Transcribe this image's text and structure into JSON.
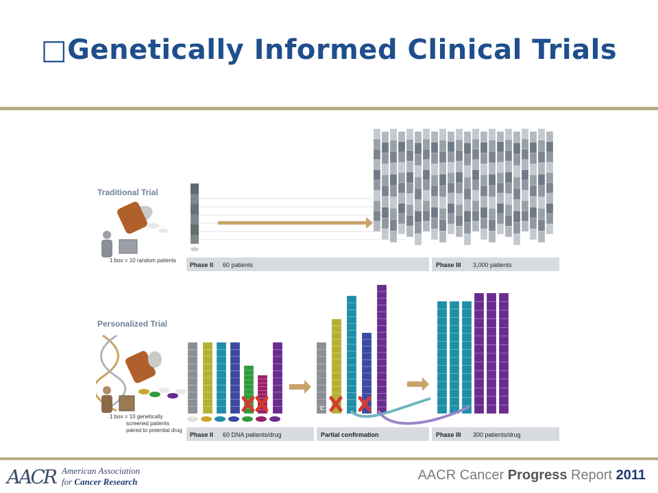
{
  "slide": {
    "title": "□Genetically Informed Clinical Trials"
  },
  "traditional": {
    "label": "Traditional Trial",
    "legend": "1 box = 10 random patients",
    "phase2_label": "Phase II",
    "phase2_value": "60 patients",
    "phase3_label": "Phase III",
    "phase3_value": "3,000 patients"
  },
  "personalized": {
    "label": "Personalized Trial",
    "legend_line1": "1 box = 10 genetically",
    "legend_line2": "screened patients",
    "legend_line3": "paired to potential drug",
    "phase2_label": "Phase II",
    "phase2_value": "60 DNA patients/drug",
    "partial_label": "Partial confirmation",
    "phase3_label": "Phase III",
    "phase3_value": "300 patients/drug",
    "control_mark": "C"
  },
  "footer": {
    "logo_mark": "AACR",
    "org_line1": "American Association",
    "org_line2_prefix": "for ",
    "org_line2_bold": "Cancer Research",
    "report_prefix": "AACR Cancer ",
    "report_bold": "Progress",
    "report_mid": " Report ",
    "report_year": "2011"
  },
  "colors": {
    "title": "#1f4e8c",
    "rule": "#b7ab84",
    "arrow": "#c8a36a",
    "teal": "#1f8fa8",
    "purple": "#6a2d8f",
    "olive": "#b5b233",
    "green": "#2f9a3a",
    "magenta": "#9a1f6a",
    "navy": "#3a4aa0",
    "gray": "#8a8f96"
  }
}
